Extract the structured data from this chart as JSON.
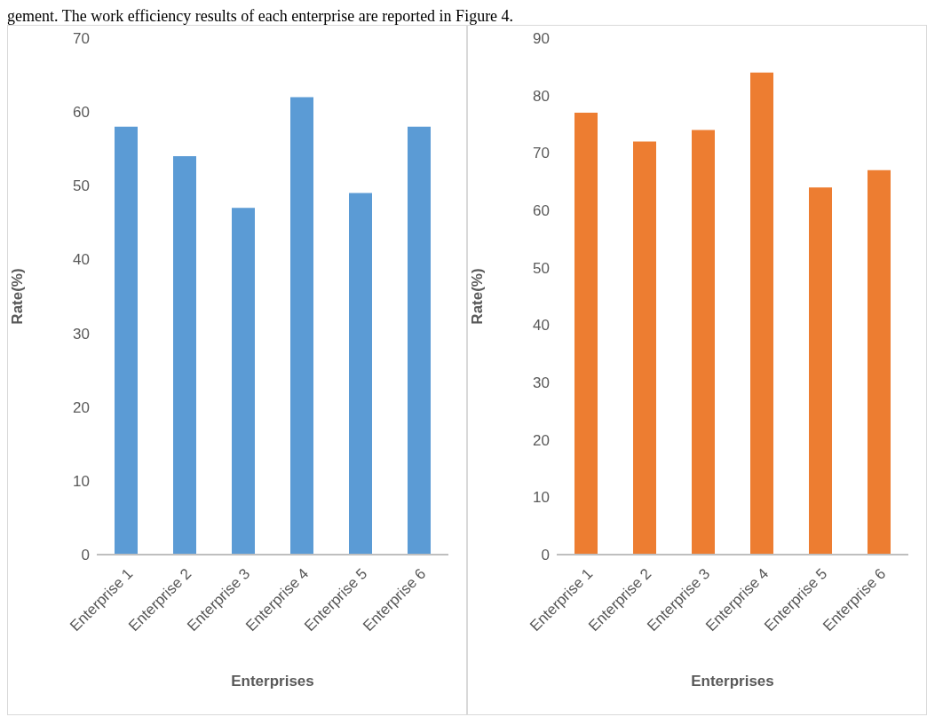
{
  "chart_data": [
    {
      "type": "bar",
      "categories": [
        "Enterprise 1",
        "Enterprise 2",
        "Enterprise 3",
        "Enterprise 4",
        "Enterprise 5",
        "Enterprise 6"
      ],
      "values": [
        58,
        54,
        47,
        62,
        49,
        58
      ],
      "color": "#5b9bd5",
      "ylim": [
        0,
        70
      ],
      "yticks": [
        0,
        10,
        20,
        30,
        40,
        50,
        60,
        70
      ],
      "xlabel": "Enterprises",
      "ylabel": "Rate(%)",
      "grid": false,
      "legend": false,
      "annotations": [
        "gement. The work efficiency results of each enterprise are reported in Figure 4."
      ]
    },
    {
      "type": "bar",
      "categories": [
        "Enterprise 1",
        "Enterprise 2",
        "Enterprise 3",
        "Enterprise 4",
        "Enterprise 5",
        "Enterprise 6"
      ],
      "values": [
        77,
        72,
        74,
        84,
        64,
        67
      ],
      "color": "#ed7d31",
      "ylim": [
        0,
        90
      ],
      "yticks": [
        0,
        10,
        20,
        30,
        40,
        50,
        60,
        70,
        80,
        90
      ],
      "xlabel": "Enterprises",
      "ylabel": "Rate(%)",
      "grid": false,
      "legend": false
    }
  ]
}
